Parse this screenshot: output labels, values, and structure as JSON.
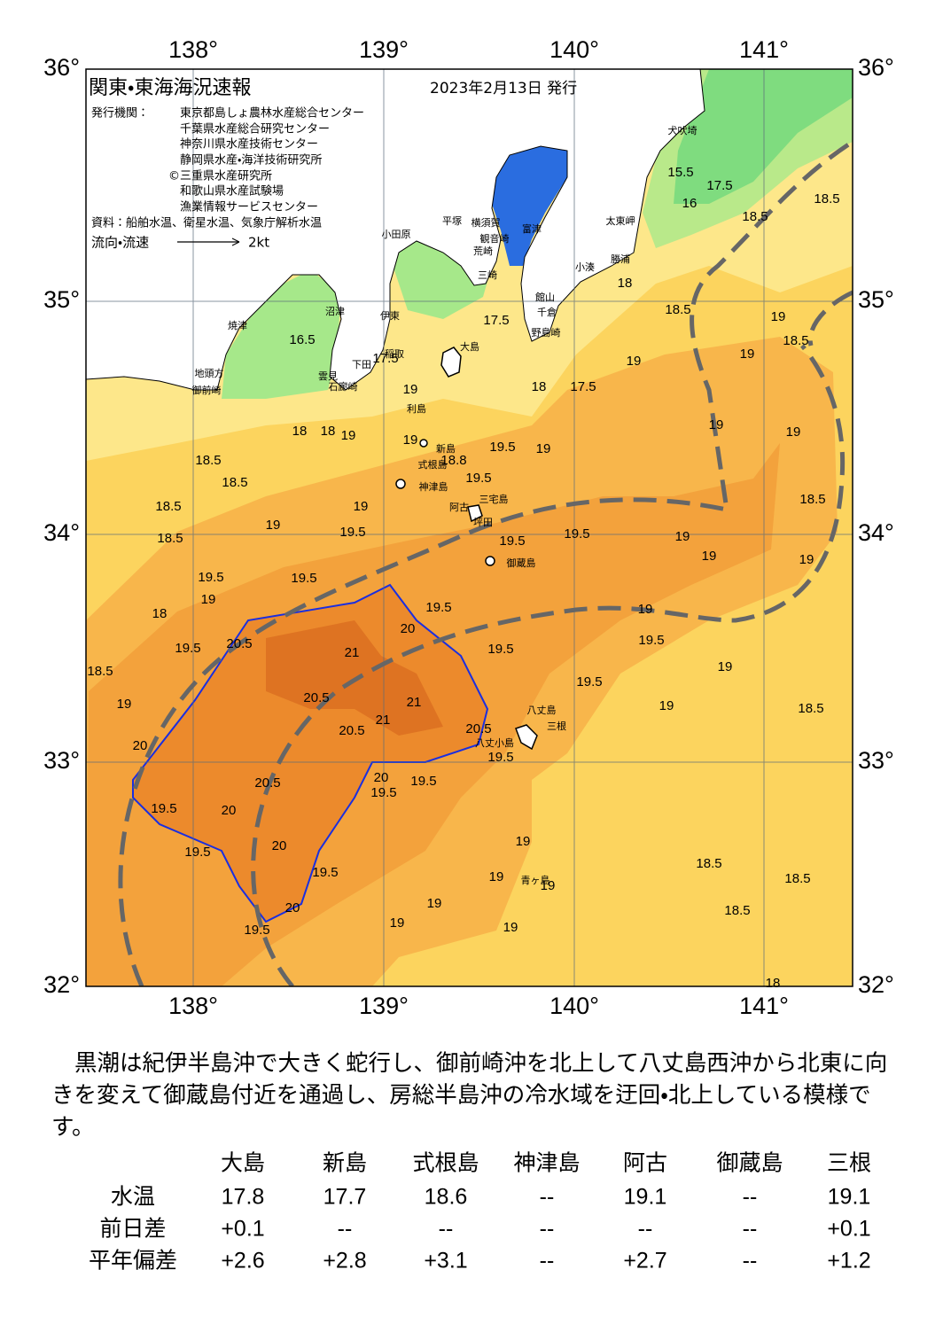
{
  "header": {
    "title": "関東・東海海況速報",
    "date": "2023年2月13日 発行",
    "issuer_label": "発行機関：",
    "issuers": [
      "東京都島しょ農林水産総合センター",
      "千葉県水産総合研究センター",
      "神奈川県水産技術センター",
      "静岡県水産・海洋技術研究所",
      "©三重県水産研究所",
      "和歌山県水産試験場",
      "漁業情報サービスセンター"
    ],
    "source": "資料：船舶水温、衛星水温、気象庁解析水温",
    "legend": "流向・流速",
    "legend_scale": "2kt"
  },
  "map": {
    "lon_labels": [
      "138°",
      "139°",
      "140°",
      "141°"
    ],
    "lat_labels": [
      "36°",
      "35°",
      "34°",
      "33°",
      "32°"
    ],
    "place_names": [
      "犬吠埼",
      "太東岬",
      "勝浦",
      "小湊",
      "富津",
      "横須賀",
      "観音崎",
      "平塚",
      "小田原",
      "荒崎",
      "三崎",
      "館山",
      "千倉",
      "野島崎",
      "沼津",
      "焼津",
      "伊東",
      "稲取",
      "下田",
      "雲見",
      "石廊崎",
      "地頭方",
      "御前崎",
      "大島",
      "利島",
      "新島",
      "式根島",
      "神津島",
      "三宅島",
      "阿古",
      "坪田",
      "御蔵島",
      "八丈島",
      "三根",
      "八丈小島",
      "青ヶ島"
    ],
    "contour_labels": [
      "18.5",
      "18.5",
      "18.5",
      "19",
      "18.5",
      "19",
      "19",
      "17.5",
      "18",
      "19",
      "19",
      "19",
      "19.5",
      "19.5",
      "18.8",
      "19",
      "19",
      "18",
      "18",
      "19",
      "18.5",
      "18.5",
      "19",
      "18.5",
      "19",
      "19.5",
      "19.5",
      "19.5",
      "18.5",
      "19",
      "19",
      "19",
      "18.5",
      "19.5",
      "19.5",
      "19",
      "19.5",
      "18",
      "19",
      "19.5",
      "20.5",
      "20",
      "19.5",
      "19.5",
      "18.5",
      "21",
      "19",
      "20.5",
      "21",
      "19.5",
      "19",
      "19",
      "18.5",
      "20.5",
      "21",
      "20.5",
      "19.5",
      "20",
      "20.5",
      "20",
      "19.5",
      "19.5",
      "19.5",
      "20",
      "19.5",
      "20",
      "19.5",
      "19",
      "18.5",
      "18.5",
      "19",
      "19",
      "19.5",
      "20",
      "19",
      "19",
      "19",
      "18.5",
      "18",
      "16.5",
      "17.5",
      "15.5",
      "16",
      "17.5",
      "17.5",
      "18"
    ]
  },
  "summary": "黒潮は紀伊半島沖で大きく蛇行し、御前崎沖を北上して八丈島西沖から北東に向きを変えて御蔵島付近を通過し、房総半島沖の冷水域を迂回・北上している模様です。",
  "table": {
    "columns": [
      "大島",
      "新島",
      "式根島",
      "神津島",
      "阿古",
      "御蔵島",
      "三根"
    ],
    "rows": [
      {
        "label": "水温",
        "values": [
          "17.8",
          "17.7",
          "18.6",
          "--",
          "19.1",
          "--",
          "19.1"
        ]
      },
      {
        "label": "前日差",
        "values": [
          "+0.1",
          "--",
          "--",
          "--",
          "--",
          "--",
          "+0.1"
        ]
      },
      {
        "label": "平年偏差",
        "values": [
          "+2.6",
          "+2.8",
          "+3.1",
          "--",
          "+2.7",
          "--",
          "+1.2"
        ]
      }
    ]
  }
}
